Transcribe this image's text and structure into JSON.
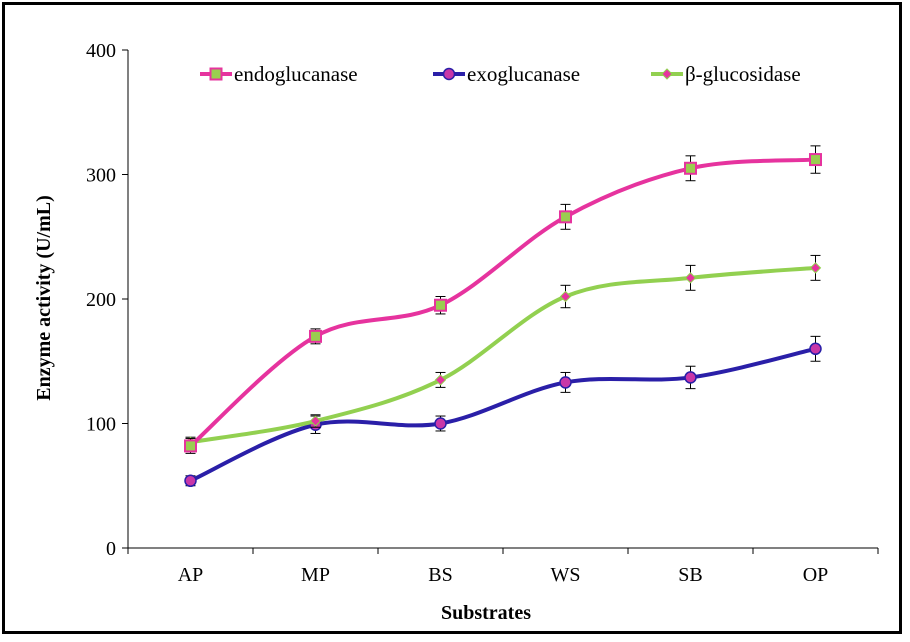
{
  "chart_data": {
    "type": "line",
    "title": "",
    "xlabel": "Substrates",
    "ylabel": "Enzyme activity (U/mL)",
    "ylim": [
      0,
      400
    ],
    "yticks": [
      "0",
      "100",
      "200",
      "300",
      "400"
    ],
    "categories": [
      "AP",
      "MP",
      "BS",
      "WS",
      "SB",
      "OP"
    ],
    "grid": false,
    "legend_position": "top",
    "smooth": true,
    "error_bars": true,
    "series": [
      {
        "name": "endoglucanase",
        "color": "#e6339e",
        "marker": "square",
        "marker_fill": "#9acd50",
        "values": [
          82,
          170,
          195,
          266,
          305,
          312
        ],
        "errors": [
          6,
          6,
          7,
          10,
          10,
          11
        ]
      },
      {
        "name": "exoglucanase",
        "color": "#2a1fa8",
        "marker": "circle",
        "marker_fill": "#c837a8",
        "values": [
          54,
          99,
          100,
          133,
          137,
          160
        ],
        "errors": [
          4,
          7,
          6,
          8,
          9,
          10
        ]
      },
      {
        "name": "β-glucosidase",
        "color": "#92d050",
        "marker": "diamond",
        "marker_fill": "#e6339e",
        "values": [
          85,
          102,
          135,
          202,
          217,
          225
        ],
        "errors": [
          4,
          5,
          6,
          9,
          10,
          10
        ]
      }
    ]
  }
}
